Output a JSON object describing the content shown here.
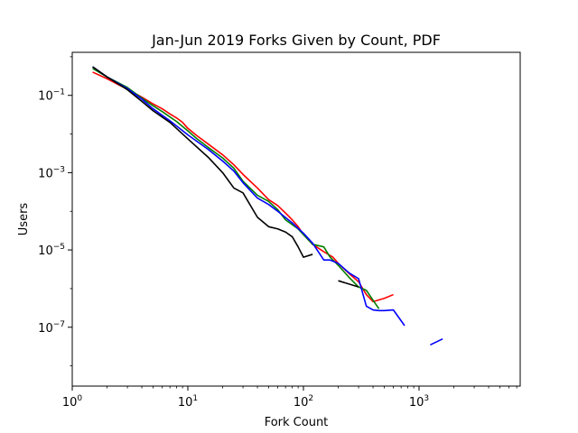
{
  "chart_data": {
    "type": "line",
    "title": "Jan-Jun 2019 Forks Given by Count, PDF",
    "xlabel": "Fork Count",
    "ylabel": "Users",
    "xscale": "log",
    "yscale": "log",
    "xlim": [
      1,
      7500
    ],
    "ylim": [
      3e-09,
      1.3
    ],
    "grid": false,
    "x_ticks": [
      {
        "value": 1,
        "base": "10",
        "exp": "0"
      },
      {
        "value": 10,
        "base": "10",
        "exp": "1"
      },
      {
        "value": 100,
        "base": "10",
        "exp": "2"
      },
      {
        "value": 1000,
        "base": "10",
        "exp": "3"
      }
    ],
    "y_ticks": [
      {
        "value": 1e-07,
        "base": "10",
        "exp": "−7"
      },
      {
        "value": 1e-05,
        "base": "10",
        "exp": "−5"
      },
      {
        "value": 0.001,
        "base": "10",
        "exp": "−3"
      },
      {
        "value": 0.1,
        "base": "10",
        "exp": "−1"
      }
    ],
    "series": [
      {
        "color": "#ff0000",
        "segments": [
          [
            [
              1.5,
              0.4
            ],
            [
              2,
              0.27
            ],
            [
              2.5,
              0.19
            ],
            [
              3,
              0.145
            ],
            [
              4,
              0.09
            ],
            [
              5,
              0.06
            ],
            [
              6,
              0.045
            ],
            [
              7,
              0.033
            ],
            [
              8,
              0.026
            ],
            [
              9,
              0.02
            ],
            [
              10,
              0.014
            ],
            [
              12,
              0.009
            ],
            [
              15,
              0.0055
            ],
            [
              20,
              0.0029
            ],
            [
              25,
              0.0016
            ],
            [
              30,
              0.0009
            ],
            [
              40,
              0.0004
            ],
            [
              50,
              0.0002
            ],
            [
              60,
              0.00014
            ],
            [
              70,
              9e-05
            ],
            [
              80,
              6e-05
            ],
            [
              90,
              4e-05
            ],
            [
              100,
              2.5e-05
            ],
            [
              120,
              1.4e-05
            ],
            [
              150,
              9e-06
            ],
            [
              180,
              6.5e-06
            ],
            [
              200,
              4.5e-06
            ],
            [
              250,
              2.4e-06
            ],
            [
              300,
              1.5e-06
            ],
            [
              350,
              7e-07
            ],
            [
              400,
              4.6e-07
            ],
            [
              500,
              5.6e-07
            ],
            [
              600,
              7e-07
            ]
          ]
        ]
      },
      {
        "color": "#008000",
        "segments": [
          [
            [
              1.5,
              0.5
            ],
            [
              2,
              0.3
            ],
            [
              3,
              0.16
            ],
            [
              4,
              0.085
            ],
            [
              5,
              0.054
            ],
            [
              6,
              0.038
            ],
            [
              8,
              0.021
            ],
            [
              10,
              0.012
            ],
            [
              12,
              0.0075
            ],
            [
              15,
              0.0045
            ],
            [
              20,
              0.0024
            ],
            [
              25,
              0.0013
            ],
            [
              30,
              0.0006
            ],
            [
              40,
              0.00026
            ],
            [
              50,
              0.00018
            ],
            [
              60,
              0.00011
            ],
            [
              70,
              6e-05
            ],
            [
              90,
              3.5e-05
            ],
            [
              100,
              2.5e-05
            ],
            [
              120,
              1.4e-05
            ],
            [
              150,
              1.2e-05
            ],
            [
              170,
              6.5e-06
            ],
            [
              200,
              4e-06
            ],
            [
              250,
              1.9e-06
            ],
            [
              300,
              1.1e-06
            ],
            [
              350,
              9e-07
            ],
            [
              400,
              5e-07
            ],
            [
              450,
              3e-07
            ]
          ]
        ]
      },
      {
        "color": "#0000ff",
        "segments": [
          [
            [
              1.5,
              0.55
            ],
            [
              2,
              0.3
            ],
            [
              3,
              0.15
            ],
            [
              4,
              0.08
            ],
            [
              5,
              0.045
            ],
            [
              7,
              0.022
            ],
            [
              10,
              0.0095
            ],
            [
              15,
              0.004
            ],
            [
              20,
              0.002
            ],
            [
              25,
              0.0011
            ],
            [
              30,
              0.00055
            ],
            [
              40,
              0.00022
            ],
            [
              50,
              0.00015
            ],
            [
              60,
              0.0001
            ],
            [
              80,
              5e-05
            ],
            [
              100,
              2.7e-05
            ],
            [
              120,
              1.5e-05
            ],
            [
              150,
              5.5e-06
            ],
            [
              170,
              5.5e-06
            ],
            [
              200,
              4.5e-06
            ],
            [
              250,
              2.5e-06
            ],
            [
              300,
              1.8e-06
            ],
            [
              350,
              3.5e-07
            ],
            [
              400,
              2.8e-07
            ],
            [
              450,
              2.7e-07
            ],
            [
              500,
              2.7e-07
            ],
            [
              600,
              2.8e-07
            ],
            [
              750,
              1.1e-07
            ]
          ],
          [
            [
              1250,
              3.5e-08
            ],
            [
              1600,
              5e-08
            ]
          ]
        ]
      },
      {
        "color": "#000000",
        "segments": [
          [
            [
              1.5,
              0.55
            ],
            [
              2,
              0.3
            ],
            [
              3,
              0.14
            ],
            [
              4,
              0.07
            ],
            [
              5,
              0.04
            ],
            [
              7,
              0.02
            ],
            [
              10,
              0.0075
            ],
            [
              15,
              0.0025
            ],
            [
              20,
              0.001
            ],
            [
              25,
              0.0004
            ],
            [
              30,
              0.0003
            ],
            [
              40,
              7e-05
            ],
            [
              50,
              4e-05
            ],
            [
              60,
              3.5e-05
            ],
            [
              70,
              2.9e-05
            ],
            [
              80,
              2.2e-05
            ],
            [
              90,
              1.2e-05
            ],
            [
              100,
              6.5e-06
            ],
            [
              120,
              7.7e-06
            ]
          ],
          [
            [
              200,
              1.6e-06
            ],
            [
              250,
              1.3e-06
            ],
            [
              300,
              1.1e-06
            ]
          ]
        ]
      }
    ]
  }
}
